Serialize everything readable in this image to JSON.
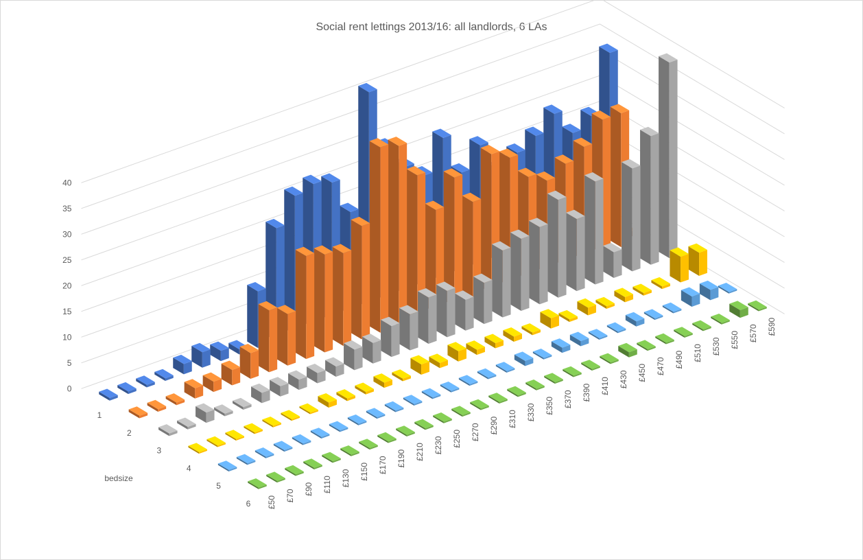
{
  "chart_data": {
    "type": "bar3d",
    "title": "Social rent lettings 2013/16: all landlords, 6 LAs",
    "depth_axis_label": "bedsize",
    "categories": [
      "£50",
      "£70",
      "£90",
      "£110",
      "£130",
      "£150",
      "£170",
      "£190",
      "£210",
      "£230",
      "£250",
      "£270",
      "£290",
      "£310",
      "£330",
      "£350",
      "£370",
      "£390",
      "£410",
      "£430",
      "£450",
      "£470",
      "£490",
      "£510",
      "£530",
      "£550",
      "£570",
      "£590"
    ],
    "series": [
      {
        "name": "1",
        "color": "#4472c4",
        "values": [
          0.5,
          0.5,
          0.5,
          0.5,
          2,
          3,
          2,
          1,
          11,
          22,
          27,
          28,
          27,
          20,
          42,
          30,
          25,
          22,
          28,
          20,
          24,
          18,
          20,
          22,
          25,
          20,
          22,
          33
        ]
      },
      {
        "name": "2",
        "color": "#ed7d31",
        "values": [
          0.5,
          0.5,
          0.5,
          2,
          2,
          3,
          5,
          12,
          10,
          20,
          19,
          18,
          22,
          36,
          35,
          28,
          20,
          25,
          19,
          27,
          25,
          20,
          18,
          20,
          22,
          26,
          26,
          1
        ]
      },
      {
        "name": "3",
        "color": "#a5a5a5",
        "values": [
          0.5,
          0.5,
          2,
          0.5,
          0.5,
          2,
          2,
          2,
          2,
          2,
          4,
          4,
          6,
          7,
          9,
          9,
          6,
          8,
          13,
          14,
          15,
          19,
          14,
          20,
          5,
          20,
          25,
          38
        ]
      },
      {
        "name": "4",
        "color": "#ffc000",
        "values": [
          0.3,
          0.3,
          0.3,
          0.3,
          0.3,
          0.3,
          0.3,
          1,
          0.5,
          0.5,
          1,
          0.5,
          2,
          1,
          2,
          1,
          1,
          1,
          0.5,
          2,
          0.5,
          1.5,
          0.5,
          1,
          0.5,
          0.5,
          5,
          4.5
        ]
      },
      {
        "name": "5",
        "color": "#5b9bd5",
        "values": [
          0.3,
          0.3,
          0.3,
          0.3,
          0.3,
          0.3,
          0.3,
          0.3,
          0.3,
          0.3,
          0.3,
          0.3,
          0.3,
          0.3,
          0.3,
          0.3,
          1,
          0.3,
          1,
          1,
          0.3,
          0.3,
          1,
          0.3,
          0.3,
          2,
          2,
          0.3
        ]
      },
      {
        "name": "6",
        "color": "#70ad47",
        "values": [
          0.3,
          0.3,
          0.3,
          0.3,
          0.3,
          0.3,
          0.3,
          0.3,
          0.3,
          0.3,
          0.3,
          0.3,
          0.3,
          0.3,
          0.3,
          0.3,
          0.3,
          0.3,
          0.3,
          0.3,
          1,
          0.3,
          0.3,
          0.3,
          0.3,
          0.3,
          1.5,
          0.3
        ]
      }
    ],
    "ylim": [
      0,
      40
    ],
    "yticks": [
      0,
      5,
      10,
      15,
      20,
      25,
      30,
      35,
      40
    ],
    "grid": true
  }
}
